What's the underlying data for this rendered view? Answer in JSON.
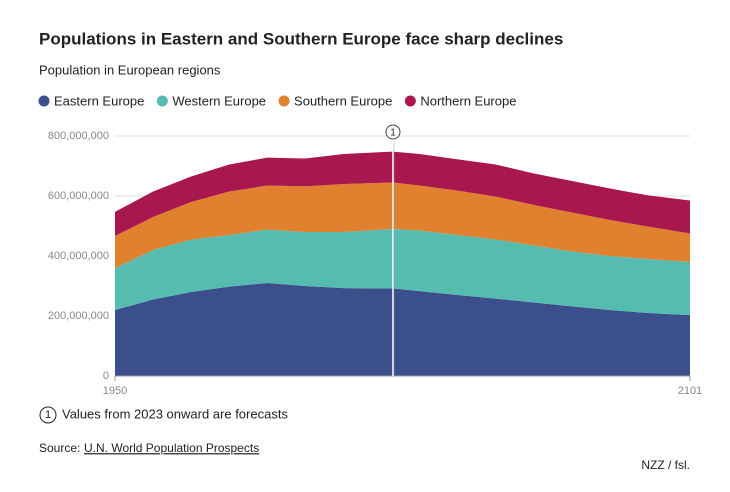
{
  "chart_data": {
    "type": "stacked_area",
    "title": "Populations in Eastern and Southern Europe face sharp declines",
    "subtitle": "Population in European regions",
    "x": [
      1950,
      1960,
      1970,
      1980,
      1990,
      2000,
      2010,
      2023,
      2030,
      2040,
      2050,
      2060,
      2070,
      2080,
      2090,
      2101
    ],
    "series": [
      {
        "name": "Eastern Europe",
        "color": "#3a4f8b",
        "values": [
          220000000,
          255000000,
          280000000,
          298000000,
          310000000,
          300000000,
          293000000,
          292000000,
          283000000,
          270000000,
          258000000,
          245000000,
          232000000,
          220000000,
          210000000,
          203000000
        ]
      },
      {
        "name": "Western Europe",
        "color": "#57bcb0",
        "values": [
          140000000,
          165000000,
          175000000,
          172000000,
          178000000,
          180000000,
          187000000,
          198000000,
          202000000,
          200000000,
          197000000,
          190000000,
          183000000,
          180000000,
          180000000,
          177000000
        ]
      },
      {
        "name": "Southern Europe",
        "color": "#e0812f",
        "values": [
          107000000,
          110000000,
          125000000,
          145000000,
          147000000,
          152000000,
          160000000,
          155000000,
          150000000,
          148000000,
          143000000,
          135000000,
          130000000,
          120000000,
          108000000,
          95000000
        ]
      },
      {
        "name": "Northern Europe",
        "color": "#a8174e",
        "values": [
          80000000,
          85000000,
          85000000,
          90000000,
          93000000,
          93000000,
          100000000,
          103000000,
          105000000,
          104000000,
          107000000,
          105000000,
          105000000,
          105000000,
          104000000,
          110000000
        ]
      }
    ],
    "xlim": [
      1950,
      2101
    ],
    "xticks": [
      1950,
      2101
    ],
    "ylim": [
      0,
      800000000
    ],
    "yticks": [
      0,
      {
        "value": 200000000,
        "label": "200,000,000"
      },
      {
        "value": 400000000,
        "label": "400,000,000"
      },
      {
        "value": 600000000,
        "label": "600,000,000"
      },
      {
        "value": 800000000,
        "label": "800,000,000"
      }
    ],
    "grid": true,
    "annotation": {
      "x": 2023,
      "label": "1",
      "text": "Values from 2023 onward are forecasts"
    },
    "source_label": "Source:",
    "source": "U.N. World Population Prospects",
    "credit": "NZZ / fsl."
  }
}
